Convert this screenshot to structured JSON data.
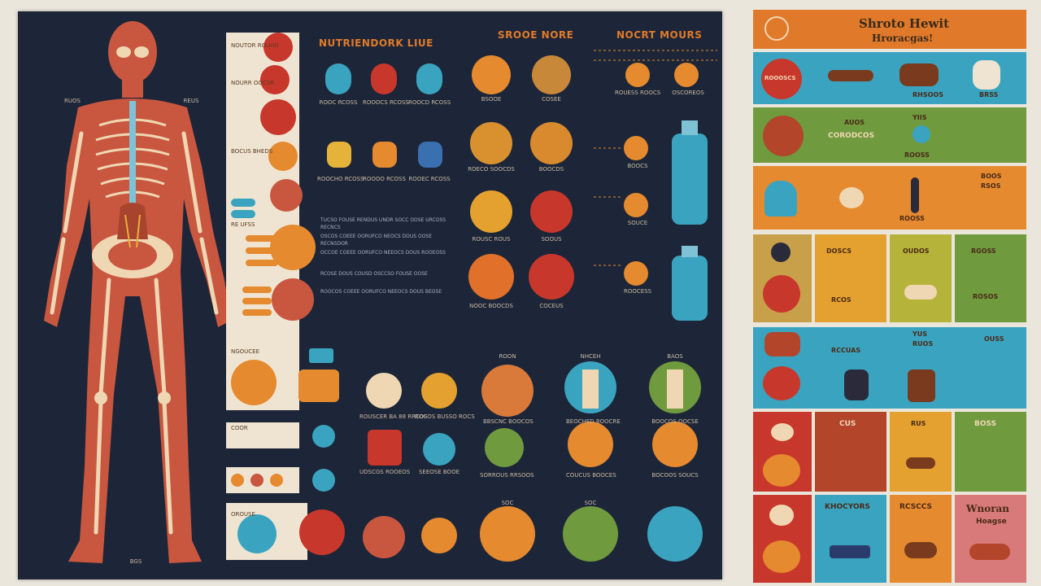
{
  "poster": {
    "header_main": "NUTRIENDORK LIUE",
    "header_mid": "SROOE NORE",
    "header_right": "NOCRT MOURS",
    "left_column_labels": [
      "NOUTOR ROUHG",
      "NOURR OOCSR",
      "BOCUS BHEDS",
      "RE UFSS",
      "NGOUCEE",
      "COOR",
      "OROUSE"
    ],
    "row1_labels": [
      "ROOC RCOSS",
      "ROOOCS RCOSS",
      "ROOCD RCOSS"
    ],
    "row2_labels": [
      "ROOCHO RCOSS",
      "ROOOO RCOSS",
      "ROOEC RCOSS"
    ],
    "para_lines": [
      "TUCSO FOUSE RENDUS UNDR SOCC OOSE URCOSS RECNCS",
      "OSCOS COEEE OORUFCO NEOCS DOUS OOSE RECNSDOR",
      "OCCOE COEEE OORUFCO NEEOCS DOUS ROOEOSS",
      "RCOSE DOUS COUSD OSCCSO FOUSE OOSE",
      "ROOCOS COEEE OORUFCO NEEOCS DOUS BEOSE"
    ],
    "mid_col_labels": [
      "BSOOE",
      "COSEE",
      "ROECO SOOCDS",
      "BOOCDS",
      "ROUSC ROUS",
      "SOOUS",
      "NOOC BOOCDS",
      "COCEUS",
      "SOORS ROUES",
      "COOORS"
    ],
    "right_col_labels": [
      "ROUESS ROOCS",
      "OSCOREOS",
      "BOOCS",
      "SOUCE",
      "ROOCESS",
      "NOUESS"
    ],
    "bottom_headers": [
      "ROON",
      "NHCEH",
      "BAOS"
    ],
    "bottom_labels_row1": [
      "ROUSCER BA 88 RRCOS",
      "ROCOS BUSSO ROCS",
      "BBSCNC BOOCOS",
      "BEOCHED BOOCRE",
      "BOOCOS OOCSE"
    ],
    "bottom_labels_row2": [
      "UDSCGS ROOEOS",
      "SEEOSE BOOE",
      "SORROUS RRSOOS",
      "COUCUS BOOCES",
      "BOCOOS SOUCS"
    ],
    "bottom_small": [
      "ROGOTSS",
      "SOCUS",
      "EOTCSS",
      "SOC"
    ],
    "figure_labels": [
      "RUOS",
      "REUS",
      "BGS"
    ]
  },
  "side": {
    "title_line1": "Shroto Hewit",
    "title_line2": "Hroracgas!",
    "row1": [
      "ROOOSCS",
      "RHSOOS",
      "BRSS"
    ],
    "row2": [
      "AUOS",
      "YIIS",
      "ROOSS",
      "CORODCOS"
    ],
    "row3": [
      "BOOS",
      "RSOS",
      "ROOSS"
    ],
    "row4": [
      "DOSCS",
      "OUDOS",
      "RCOS",
      "RGOSS",
      "ROSOS"
    ],
    "row5": [
      "YUS",
      "RUOS",
      "RCCUAS",
      "OUSS"
    ],
    "row6": [
      "CUS",
      "RUS",
      "BOSS"
    ],
    "row7": [
      "KHOCYORS",
      "RCSCCS",
      "Wnoran",
      "Hoagse"
    ]
  },
  "colors": {
    "poster_bg": "#1d2638",
    "body_red": "#c9573f",
    "bone": "#efd7b4",
    "orange": "#e58a2e",
    "teal": "#3aa4c0",
    "green": "#6f9a3e",
    "red": "#c8372b"
  },
  "icons": [
    "human-anatomy-figure",
    "organ-icon",
    "bottle-icon",
    "fruit-circle-icon"
  ]
}
